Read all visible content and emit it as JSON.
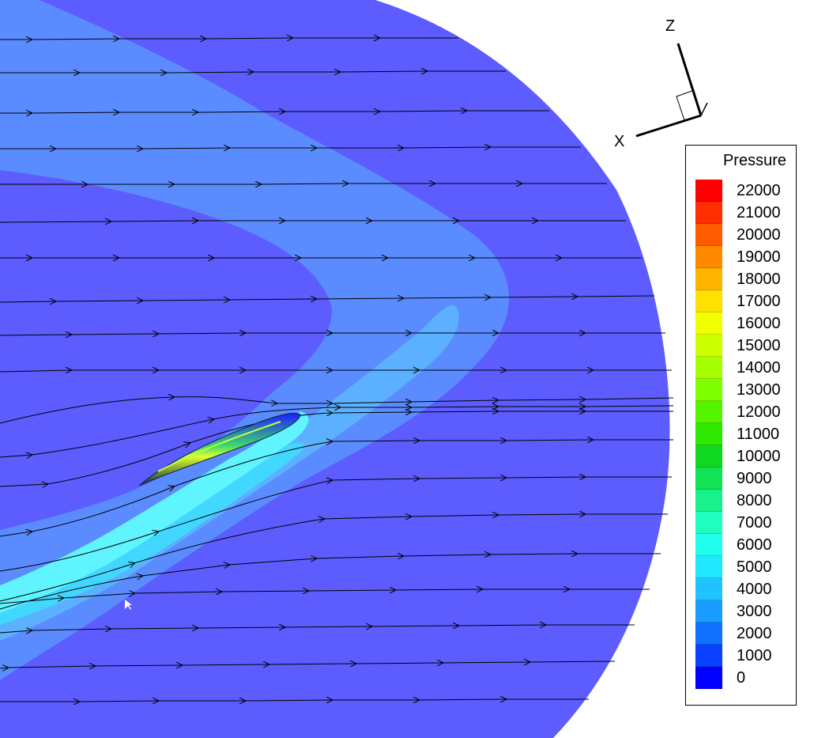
{
  "axes": {
    "x_label": "X",
    "z_label": "Z"
  },
  "legend": {
    "title": "Pressure",
    "levels": [
      {
        "label": "22000",
        "color": "#ff0000"
      },
      {
        "label": "21000",
        "color": "#ff2e00"
      },
      {
        "label": "20000",
        "color": "#ff5c00"
      },
      {
        "label": "19000",
        "color": "#ff8a00"
      },
      {
        "label": "18000",
        "color": "#ffb400"
      },
      {
        "label": "17000",
        "color": "#ffe000"
      },
      {
        "label": "16000",
        "color": "#f2ff00"
      },
      {
        "label": "15000",
        "color": "#ccff00"
      },
      {
        "label": "14000",
        "color": "#a6ff00"
      },
      {
        "label": "13000",
        "color": "#80ff00"
      },
      {
        "label": "12000",
        "color": "#55f500"
      },
      {
        "label": "11000",
        "color": "#2ee800"
      },
      {
        "label": "10000",
        "color": "#10d820"
      },
      {
        "label": "9000",
        "color": "#12e255"
      },
      {
        "label": "8000",
        "color": "#18f28c"
      },
      {
        "label": "7000",
        "color": "#20ffc0"
      },
      {
        "label": "6000",
        "color": "#20ffee"
      },
      {
        "label": "5000",
        "color": "#20e6ff"
      },
      {
        "label": "4000",
        "color": "#20c2ff"
      },
      {
        "label": "3000",
        "color": "#1a9cff"
      },
      {
        "label": "2000",
        "color": "#1070ff"
      },
      {
        "label": "1000",
        "color": "#0a40ff"
      },
      {
        "label": "0",
        "color": "#0000ff"
      }
    ]
  },
  "field_colors": {
    "outer": "#5c5cff",
    "band1": "#5b8cff",
    "band2": "#5bb1ff",
    "band3": "#60f4ff",
    "band4": "#41d7ff"
  }
}
